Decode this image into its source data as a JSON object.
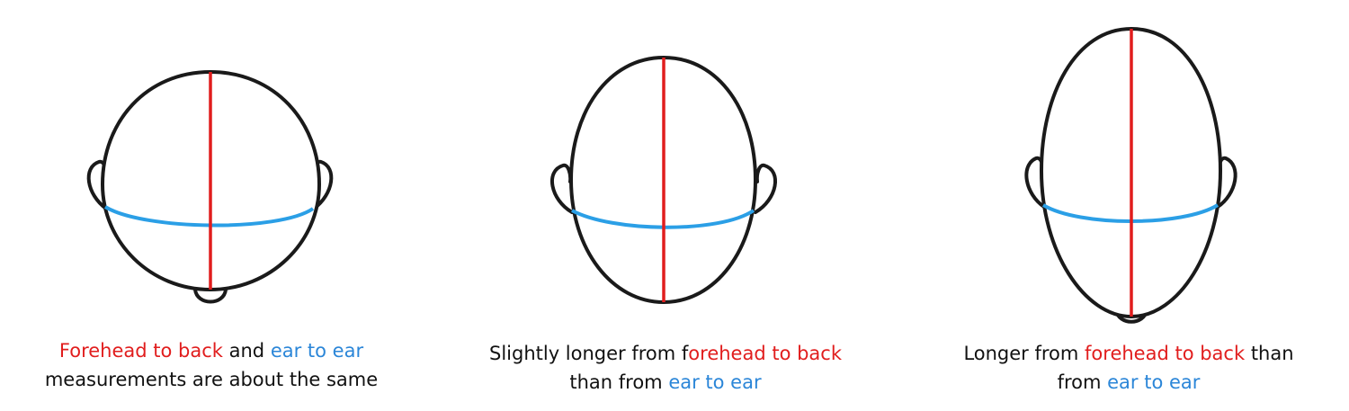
{
  "colors": {
    "outline": "#1a1a1a",
    "forehead_to_back_line": "#e11d1d",
    "ear_to_ear_line": "#2b9fe6",
    "highlight_red": "#e11d1d",
    "highlight_blue": "#2b86d8"
  },
  "panels": [
    {
      "caption_line1": {
        "red": "Forehead to back",
        "plain1": " and ",
        "blue": "ear to ear",
        "plain2": ""
      },
      "caption_line2": {
        "plain": "measurements are about the same"
      }
    },
    {
      "caption_line1": {
        "plain1": "Slightly longer from f",
        "red": "orehead to back",
        "plain2": ""
      },
      "caption_line2": {
        "plain": "than from ",
        "blue": "ear to ear"
      }
    },
    {
      "caption_line1": {
        "plain1": "Longer from ",
        "red": "forehead to back",
        "plain2": " than"
      },
      "caption_line2": {
        "plain": "from ",
        "blue": "ear to ear"
      }
    }
  ]
}
